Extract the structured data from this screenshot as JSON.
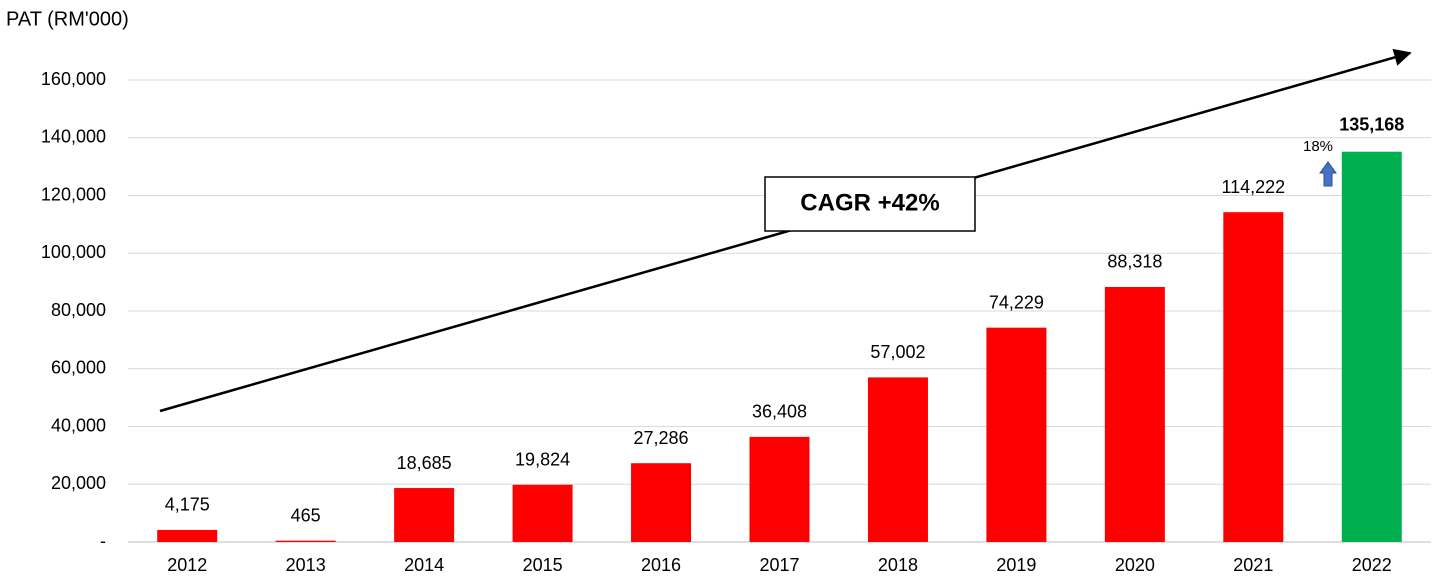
{
  "chart_data": {
    "type": "bar",
    "y_axis_label": "PAT (RM'000)",
    "categories": [
      "2012",
      "2013",
      "2014",
      "2015",
      "2016",
      "2017",
      "2018",
      "2019",
      "2020",
      "2021",
      "2022"
    ],
    "values": [
      4175,
      465,
      18685,
      19824,
      27286,
      36408,
      57002,
      74229,
      88318,
      114222,
      135168
    ],
    "value_labels": [
      "4,175",
      "465",
      "18,685",
      "19,824",
      "27,286",
      "36,408",
      "57,002",
      "74,229",
      "88,318",
      "114,222",
      "135,168"
    ],
    "colors": [
      "#ff0000",
      "#ff0000",
      "#ff0000",
      "#ff0000",
      "#ff0000",
      "#ff0000",
      "#ff0000",
      "#ff0000",
      "#ff0000",
      "#ff0000",
      "#00b050"
    ],
    "ylim": [
      0,
      160000
    ],
    "yticks": [
      {
        "value": 0,
        "label": "-"
      },
      {
        "value": 20000,
        "label": "20,000"
      },
      {
        "value": 40000,
        "label": "40,000"
      },
      {
        "value": 60000,
        "label": "60,000"
      },
      {
        "value": 80000,
        "label": "80,000"
      },
      {
        "value": 100000,
        "label": "100,000"
      },
      {
        "value": 120000,
        "label": "120,000"
      },
      {
        "value": 140000,
        "label": "140,000"
      },
      {
        "value": 160000,
        "label": "160,000"
      }
    ],
    "grid": true,
    "annotations": [
      "CAGR +42%",
      "18%"
    ]
  }
}
